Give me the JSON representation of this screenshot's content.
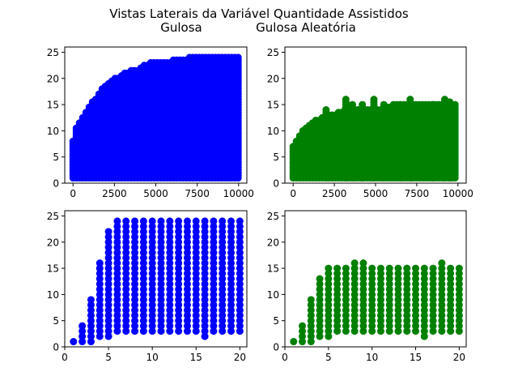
{
  "figure": {
    "title_line1": "Vistas Laterais da Variável Quantidade Assistidos",
    "title_line2_left": "Gulosa",
    "title_line2_right": "Gulosa Aleatória"
  },
  "chart_data": [
    {
      "type": "scatter",
      "panel": "top-left",
      "series": [
        {
          "color": "#0000ff",
          "pattern": "dense-envelope",
          "envelope": [
            [
              0,
              8
            ],
            [
              50,
              10
            ],
            [
              200,
              11
            ],
            [
              500,
              12.5
            ],
            [
              800,
              14
            ],
            [
              1000,
              15
            ],
            [
              1500,
              17
            ],
            [
              2000,
              19
            ],
            [
              2500,
              20
            ],
            [
              3000,
              21
            ],
            [
              3500,
              21.5
            ],
            [
              4000,
              22
            ],
            [
              4500,
              23
            ],
            [
              5000,
              23
            ],
            [
              6000,
              23.5
            ],
            [
              7000,
              24
            ],
            [
              8000,
              24
            ],
            [
              10000,
              24
            ]
          ],
          "ymin": 1
        }
      ],
      "xlim": [
        -500,
        10500
      ],
      "ylim": [
        0,
        26
      ],
      "xticks": [
        0,
        2500,
        5000,
        7500,
        10000
      ],
      "yticks": [
        0,
        5,
        10,
        15,
        20,
        25
      ]
    },
    {
      "type": "scatter",
      "panel": "top-right",
      "series": [
        {
          "color": "#008000",
          "pattern": "dense-envelope",
          "envelope": [
            [
              0,
              7
            ],
            [
              100,
              8
            ],
            [
              300,
              9
            ],
            [
              500,
              10
            ],
            [
              800,
              11
            ],
            [
              1200,
              12
            ],
            [
              2000,
              13
            ],
            [
              2500,
              13
            ],
            [
              3000,
              14
            ],
            [
              4000,
              14
            ],
            [
              5000,
              14
            ],
            [
              6000,
              15
            ],
            [
              7000,
              15
            ],
            [
              8000,
              15
            ],
            [
              10000,
              15
            ]
          ],
          "outliers": [
            [
              2000,
              14
            ],
            [
              3200,
              16
            ],
            [
              3600,
              15
            ],
            [
              4200,
              15
            ],
            [
              4900,
              16
            ],
            [
              5500,
              15
            ],
            [
              6500,
              15
            ],
            [
              7100,
              16
            ],
            [
              8500,
              15
            ],
            [
              9200,
              16
            ],
            [
              9500,
              15.5
            ]
          ],
          "ymin": 1
        }
      ],
      "xlim": [
        -500,
        10500
      ],
      "ylim": [
        0,
        26
      ],
      "xticks": [
        0,
        2500,
        5000,
        7500,
        10000
      ],
      "yticks": [
        0,
        5,
        10,
        15,
        20,
        25
      ]
    },
    {
      "type": "scatter",
      "panel": "bottom-left",
      "series": [
        {
          "color": "#0000ff",
          "pattern": "columns",
          "columns": [
            {
              "x": 1,
              "min": 1,
              "max": 1
            },
            {
              "x": 2,
              "min": 1,
              "max": 4
            },
            {
              "x": 3,
              "min": 1,
              "max": 9
            },
            {
              "x": 4,
              "min": 2,
              "max": 16
            },
            {
              "x": 5,
              "min": 2,
              "max": 22
            },
            {
              "x": 6,
              "min": 3,
              "max": 24
            },
            {
              "x": 7,
              "min": 3,
              "max": 24
            },
            {
              "x": 8,
              "min": 3,
              "max": 24
            },
            {
              "x": 9,
              "min": 3,
              "max": 24
            },
            {
              "x": 10,
              "min": 3,
              "max": 24
            },
            {
              "x": 11,
              "min": 3,
              "max": 24
            },
            {
              "x": 12,
              "min": 3,
              "max": 24
            },
            {
              "x": 13,
              "min": 3,
              "max": 24
            },
            {
              "x": 14,
              "min": 3,
              "max": 24
            },
            {
              "x": 15,
              "min": 3,
              "max": 24
            },
            {
              "x": 16,
              "min": 2,
              "max": 24
            },
            {
              "x": 17,
              "min": 3,
              "max": 24
            },
            {
              "x": 18,
              "min": 3,
              "max": 24
            },
            {
              "x": 19,
              "min": 3,
              "max": 24
            },
            {
              "x": 20,
              "min": 3,
              "max": 24
            }
          ]
        }
      ],
      "xlim": [
        0,
        20.8
      ],
      "ylim": [
        0,
        26
      ],
      "xticks": [
        0,
        5,
        10,
        15,
        20
      ],
      "yticks": [
        0,
        5,
        10,
        15,
        20,
        25
      ]
    },
    {
      "type": "scatter",
      "panel": "bottom-right",
      "series": [
        {
          "color": "#008000",
          "pattern": "columns",
          "columns": [
            {
              "x": 1,
              "min": 1,
              "max": 1
            },
            {
              "x": 2,
              "min": 1,
              "max": 4
            },
            {
              "x": 3,
              "min": 1,
              "max": 9
            },
            {
              "x": 4,
              "min": 2,
              "max": 13
            },
            {
              "x": 5,
              "min": 2,
              "max": 15
            },
            {
              "x": 6,
              "min": 3,
              "max": 15
            },
            {
              "x": 7,
              "min": 3,
              "max": 15
            },
            {
              "x": 8,
              "min": 3,
              "max": 16
            },
            {
              "x": 9,
              "min": 3,
              "max": 16
            },
            {
              "x": 10,
              "min": 3,
              "max": 15
            },
            {
              "x": 11,
              "min": 3,
              "max": 15
            },
            {
              "x": 12,
              "min": 3,
              "max": 15
            },
            {
              "x": 13,
              "min": 3,
              "max": 15
            },
            {
              "x": 14,
              "min": 3,
              "max": 15
            },
            {
              "x": 15,
              "min": 3,
              "max": 15
            },
            {
              "x": 16,
              "min": 2,
              "max": 15
            },
            {
              "x": 17,
              "min": 3,
              "max": 15
            },
            {
              "x": 18,
              "min": 3,
              "max": 16
            },
            {
              "x": 19,
              "min": 3,
              "max": 15
            },
            {
              "x": 20,
              "min": 3,
              "max": 15
            }
          ]
        }
      ],
      "xlim": [
        0,
        20.8
      ],
      "ylim": [
        0,
        26
      ],
      "xticks": [
        0,
        5,
        10,
        15,
        20
      ],
      "yticks": [
        0,
        5,
        10,
        15,
        20,
        25
      ]
    }
  ]
}
